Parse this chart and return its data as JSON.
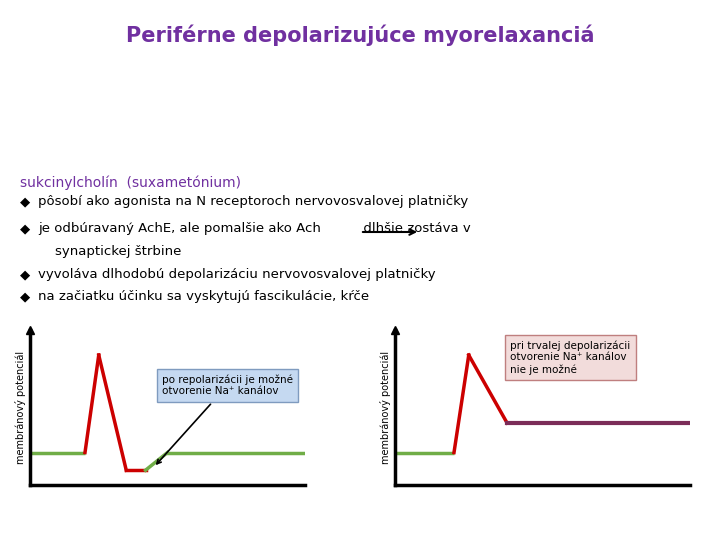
{
  "title": "Periférne depolarizujúce myorelaxanciá",
  "title_color": "#7030A0",
  "title_fontsize": 15,
  "bg_color": "#ffffff",
  "subtitle": "sukcinylcholín  (suxametónium)",
  "subtitle_color": "#7030A0",
  "subtitle_fontsize": 10,
  "bullet_color": "#000000",
  "bullet_fontsize": 9.5,
  "graph1_annotation_line1": "po repolarizácii je možné",
  "graph1_annotation_line2": "otvorenie Na",
  "graph1_annotation_line2b": " kanálov",
  "graph1_box_color": "#C5D9F1",
  "graph1_box_edge": "#7F9BBF",
  "graph2_annotation_line1": "pri trvalej depolarizácii",
  "graph2_annotation_line2": "otvorenie Na",
  "graph2_annotation_line2b": " kanálov",
  "graph2_annotation_line3": "nie je možné",
  "graph2_box_color": "#F2DCDB",
  "graph2_box_edge": "#BF7F7F",
  "ylabel": "membránový potenciál",
  "ylabel_fontsize": 7,
  "resting_color": "#70AD47",
  "ap_color": "#CC0000",
  "depol_color": "#7B2C58",
  "resting_level": 0.22,
  "peak_level": 0.88,
  "hyperpol_level": 0.1,
  "depol_sustained": 0.42
}
